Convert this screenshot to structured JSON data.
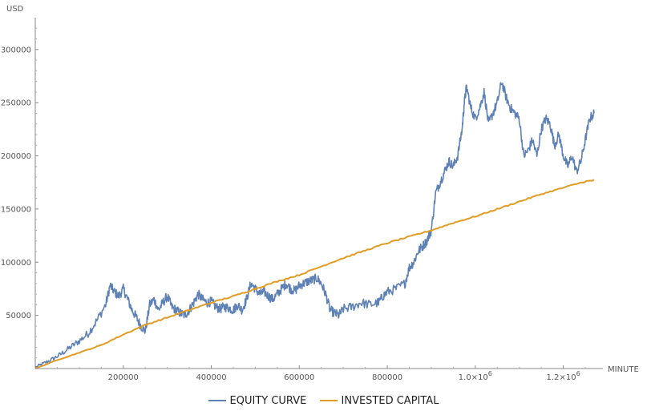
{
  "chart_data": {
    "type": "line",
    "title": "",
    "xlabel": "MINUTE",
    "ylabel": "USD",
    "xlim": [
      0,
      1290000
    ],
    "ylim": [
      0,
      330000
    ],
    "grid": false,
    "legend_position": "bottom",
    "x_ticks": [
      {
        "value": 200000,
        "label": "200000"
      },
      {
        "value": 400000,
        "label": "400000"
      },
      {
        "value": 600000,
        "label": "600000"
      },
      {
        "value": 800000,
        "label": "800000"
      },
      {
        "value": 1000000,
        "label": "1.0×10",
        "exp": "6"
      },
      {
        "value": 1200000,
        "label": "1.2×10",
        "exp": "6"
      }
    ],
    "y_ticks": [
      {
        "value": 50000,
        "label": "50000"
      },
      {
        "value": 100000,
        "label": "100000"
      },
      {
        "value": 150000,
        "label": "150000"
      },
      {
        "value": 200000,
        "label": "200000"
      },
      {
        "value": 250000,
        "label": "250000"
      },
      {
        "value": 300000,
        "label": "300000"
      }
    ],
    "series": [
      {
        "name": "EQUITY CURVE",
        "color": "#5e81b5",
        "noise": 4500,
        "x": [
          0,
          20000,
          40000,
          60000,
          80000,
          100000,
          120000,
          140000,
          160000,
          170000,
          180000,
          190000,
          200000,
          210000,
          220000,
          230000,
          240000,
          250000,
          260000,
          270000,
          280000,
          290000,
          300000,
          310000,
          320000,
          330000,
          340000,
          350000,
          360000,
          370000,
          380000,
          390000,
          400000,
          410000,
          420000,
          430000,
          440000,
          450000,
          460000,
          470000,
          480000,
          490000,
          500000,
          510000,
          520000,
          530000,
          540000,
          550000,
          560000,
          570000,
          580000,
          590000,
          600000,
          610000,
          620000,
          630000,
          640000,
          650000,
          660000,
          670000,
          680000,
          690000,
          700000,
          720000,
          740000,
          760000,
          780000,
          790000,
          800000,
          820000,
          840000,
          850000,
          860000,
          870000,
          880000,
          890000,
          900000,
          910000,
          920000,
          930000,
          940000,
          950000,
          960000,
          970000,
          975000,
          980000,
          990000,
          1000000,
          1010000,
          1020000,
          1030000,
          1040000,
          1050000,
          1060000,
          1070000,
          1080000,
          1090000,
          1100000,
          1110000,
          1120000,
          1130000,
          1140000,
          1150000,
          1160000,
          1170000,
          1180000,
          1190000,
          1200000,
          1210000,
          1220000,
          1230000,
          1240000,
          1250000,
          1260000,
          1270000
        ],
        "y": [
          1000,
          5000,
          9000,
          14000,
          20000,
          26000,
          33000,
          45000,
          60000,
          78000,
          72000,
          68000,
          75000,
          65000,
          55000,
          48000,
          40000,
          35000,
          60000,
          65000,
          55000,
          62000,
          68000,
          58000,
          55000,
          52000,
          50000,
          55000,
          62000,
          70000,
          65000,
          62000,
          63000,
          58000,
          56000,
          58000,
          57000,
          55000,
          60000,
          55000,
          65000,
          80000,
          75000,
          70000,
          72000,
          68000,
          65000,
          70000,
          75000,
          80000,
          75000,
          73000,
          78000,
          80000,
          82000,
          83000,
          85000,
          80000,
          70000,
          55000,
          52000,
          50000,
          56000,
          58000,
          62000,
          60000,
          62000,
          68000,
          72000,
          75000,
          80000,
          95000,
          100000,
          110000,
          115000,
          120000,
          130000,
          165000,
          175000,
          185000,
          195000,
          190000,
          200000,
          225000,
          250000,
          265000,
          245000,
          235000,
          245000,
          260000,
          230000,
          240000,
          250000,
          270000,
          255000,
          245000,
          240000,
          235000,
          200000,
          205000,
          215000,
          200000,
          225000,
          235000,
          230000,
          210000,
          220000,
          200000,
          190000,
          200000,
          185000,
          195000,
          215000,
          235000,
          240000
        ]
      },
      {
        "name": "INVESTED CAPITAL",
        "color": "#e19c24",
        "noise": 600,
        "x": [
          0,
          50000,
          100000,
          150000,
          200000,
          250000,
          300000,
          350000,
          400000,
          450000,
          500000,
          550000,
          600000,
          650000,
          700000,
          750000,
          800000,
          850000,
          900000,
          950000,
          1000000,
          1050000,
          1100000,
          1150000,
          1200000,
          1250000,
          1270000
        ],
        "y": [
          0,
          8000,
          15000,
          22000,
          32000,
          41000,
          48000,
          55000,
          62000,
          68000,
          75000,
          82000,
          88000,
          96000,
          104000,
          111000,
          118000,
          124000,
          130000,
          137000,
          143000,
          150000,
          157000,
          164000,
          170000,
          176000,
          177000
        ]
      }
    ]
  }
}
